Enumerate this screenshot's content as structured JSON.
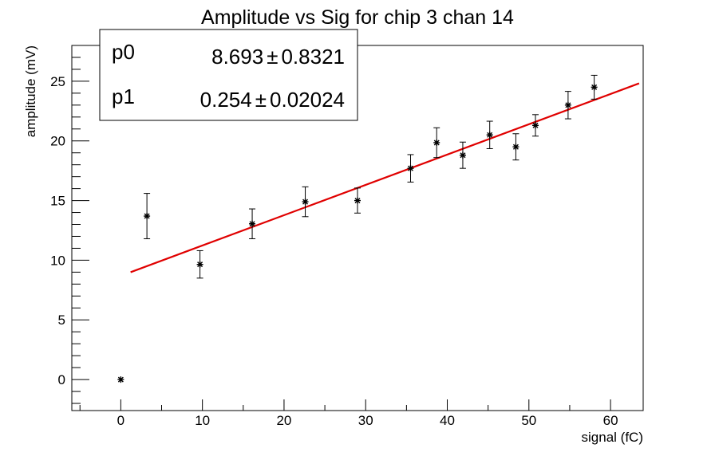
{
  "chart_data": {
    "type": "scatter",
    "title": "Amplitude vs Sig for chip 3 chan 14",
    "xlabel": "signal (fC)",
    "ylabel": "amplitude (mV)",
    "xlim": [
      -6,
      64
    ],
    "ylim": [
      -2.6,
      28
    ],
    "x_ticks": [
      0,
      10,
      20,
      30,
      40,
      50,
      60
    ],
    "y_ticks": [
      0,
      5,
      10,
      15,
      20,
      25
    ],
    "grid": false,
    "marker_color": "#000000",
    "fit_color": "#e00000",
    "series": [
      {
        "points": [
          {
            "x": 0,
            "y": 0,
            "err": 0
          },
          {
            "x": 3.2,
            "y": 13.7,
            "err": 1.9
          },
          {
            "x": 9.7,
            "y": 9.65,
            "err": 1.15
          },
          {
            "x": 16.1,
            "y": 13.05,
            "err": 1.25
          },
          {
            "x": 22.6,
            "y": 14.9,
            "err": 1.25
          },
          {
            "x": 29.0,
            "y": 15.0,
            "err": 1.05
          },
          {
            "x": 35.5,
            "y": 17.7,
            "err": 1.15
          },
          {
            "x": 38.7,
            "y": 19.85,
            "err": 1.25
          },
          {
            "x": 41.9,
            "y": 18.8,
            "err": 1.1
          },
          {
            "x": 45.2,
            "y": 20.5,
            "err": 1.15
          },
          {
            "x": 48.4,
            "y": 19.5,
            "err": 1.1
          },
          {
            "x": 50.8,
            "y": 21.3,
            "err": 0.9
          },
          {
            "x": 54.8,
            "y": 23.0,
            "err": 1.15
          },
          {
            "x": 58.0,
            "y": 24.5,
            "err": 1.0
          }
        ]
      }
    ],
    "fit": {
      "function": "pol1",
      "x_range": [
        1.2,
        63.5
      ]
    },
    "stats_box": {
      "placement": "top-left",
      "rows": [
        {
          "name": "p0",
          "value": "8.693",
          "pm": "±",
          "error": "0.8321"
        },
        {
          "name": "p1",
          "value": "0.254",
          "pm": "±",
          "error": "0.02024"
        }
      ]
    }
  }
}
